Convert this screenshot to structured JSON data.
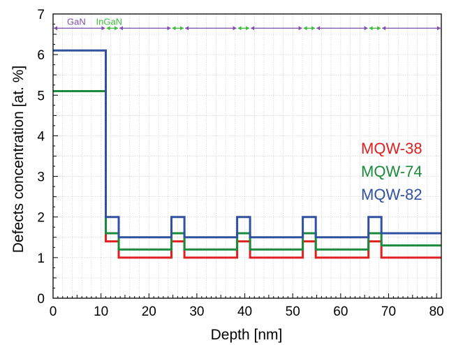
{
  "chart_data": {
    "type": "line",
    "xlabel": "Depth [nm]",
    "ylabel": "Defects concentration [at. %]",
    "xlim": [
      0,
      81
    ],
    "ylim": [
      0,
      7
    ],
    "xticks": [
      0,
      10,
      20,
      30,
      40,
      50,
      60,
      70,
      80
    ],
    "yticks": [
      0,
      1,
      2,
      3,
      4,
      5,
      6,
      7
    ],
    "grid": true,
    "legend_position": "right",
    "series": [
      {
        "name": "MQW-38",
        "color": "#e02020",
        "x": [
          0,
          11,
          11,
          13.7,
          13.7,
          24.7,
          24.7,
          27.4,
          27.4,
          38.4,
          38.4,
          41.1,
          41.1,
          52.1,
          52.1,
          54.8,
          54.8,
          65.8,
          65.8,
          68.5,
          68.5,
          81
        ],
        "y": [
          5.1,
          5.1,
          1.4,
          1.4,
          1.0,
          1.0,
          1.4,
          1.4,
          1.0,
          1.0,
          1.4,
          1.4,
          1.0,
          1.0,
          1.4,
          1.4,
          1.0,
          1.0,
          1.4,
          1.4,
          1.0,
          1.0
        ]
      },
      {
        "name": "MQW-74",
        "color": "#1a8a3c",
        "x": [
          0,
          11,
          11,
          13.7,
          13.7,
          24.7,
          24.7,
          27.4,
          27.4,
          38.4,
          38.4,
          41.1,
          41.1,
          52.1,
          52.1,
          54.8,
          54.8,
          65.8,
          65.8,
          68.5,
          68.5,
          81
        ],
        "y": [
          5.1,
          5.1,
          1.6,
          1.6,
          1.2,
          1.2,
          1.6,
          1.6,
          1.2,
          1.2,
          1.6,
          1.6,
          1.2,
          1.2,
          1.6,
          1.6,
          1.2,
          1.2,
          1.6,
          1.6,
          1.3,
          1.3
        ]
      },
      {
        "name": "MQW-82",
        "color": "#3050a0",
        "x": [
          0,
          11,
          11,
          13.7,
          13.7,
          24.7,
          24.7,
          27.4,
          27.4,
          38.4,
          38.4,
          41.1,
          41.1,
          52.1,
          52.1,
          54.8,
          54.8,
          65.8,
          65.8,
          68.5,
          68.5,
          81
        ],
        "y": [
          6.1,
          6.1,
          2.0,
          2.0,
          1.5,
          1.5,
          2.0,
          2.0,
          1.5,
          1.5,
          2.0,
          2.0,
          1.5,
          1.5,
          2.0,
          2.0,
          1.5,
          1.5,
          2.0,
          2.0,
          1.6,
          1.6
        ]
      }
    ],
    "layer_annotation": {
      "y": 6.65,
      "gan_label": "GaN",
      "ingan_label": "InGaN",
      "gan_color": "#7b4fae",
      "ingan_color": "#3dbb3d",
      "segments": [
        {
          "layer": "GaN",
          "from": 0,
          "to": 11
        },
        {
          "layer": "InGaN",
          "from": 11,
          "to": 13.7
        },
        {
          "layer": "GaN",
          "from": 13.7,
          "to": 24.7
        },
        {
          "layer": "InGaN",
          "from": 24.7,
          "to": 27.4
        },
        {
          "layer": "GaN",
          "from": 27.4,
          "to": 38.4
        },
        {
          "layer": "InGaN",
          "from": 38.4,
          "to": 41.1
        },
        {
          "layer": "GaN",
          "from": 41.1,
          "to": 52.1
        },
        {
          "layer": "InGaN",
          "from": 52.1,
          "to": 54.8
        },
        {
          "layer": "GaN",
          "from": 54.8,
          "to": 65.8
        },
        {
          "layer": "InGaN",
          "from": 65.8,
          "to": 68.5
        },
        {
          "layer": "GaN",
          "from": 68.5,
          "to": 81
        }
      ]
    }
  }
}
